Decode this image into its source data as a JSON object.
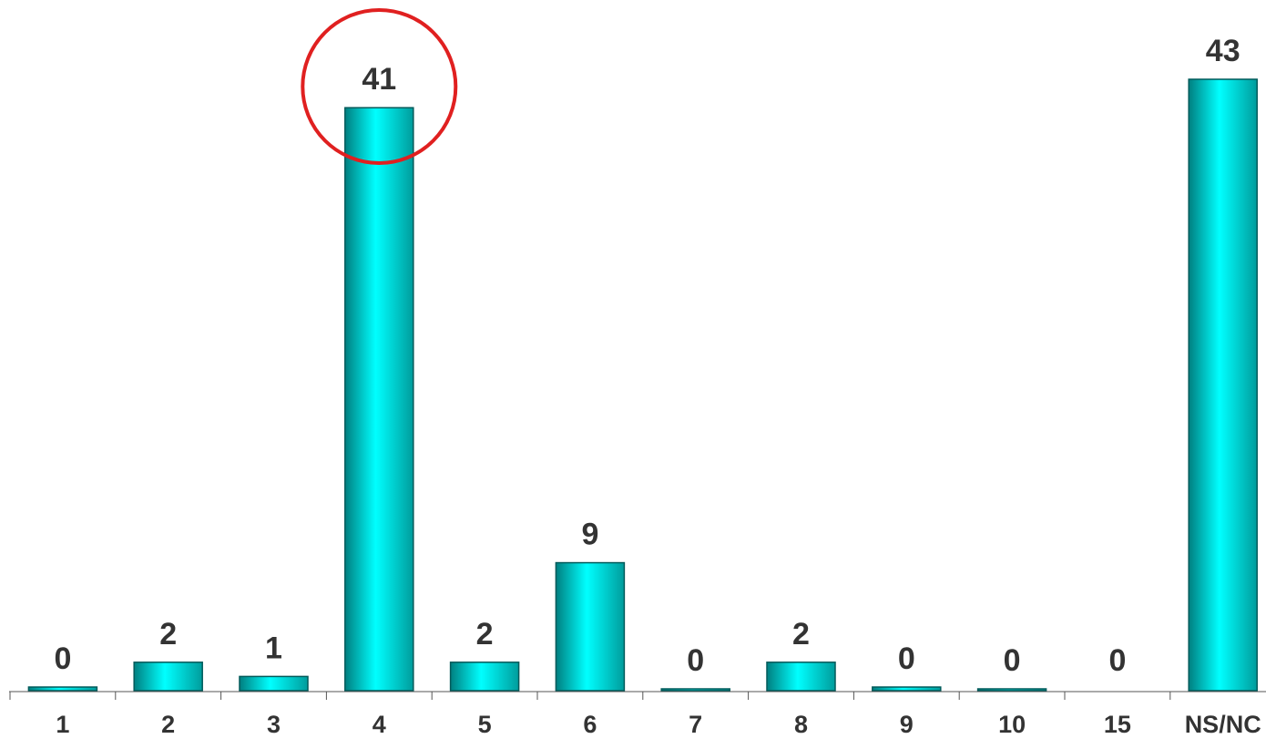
{
  "chart_data": {
    "type": "bar",
    "categories": [
      "1",
      "2",
      "3",
      "4",
      "5",
      "6",
      "7",
      "8",
      "9",
      "10",
      "15",
      "NS/NC"
    ],
    "values": [
      0,
      2,
      1,
      41,
      2,
      9,
      0,
      2,
      0,
      0,
      0,
      43
    ],
    "title": "",
    "xlabel": "",
    "ylabel": "",
    "ylim": [
      0,
      43
    ],
    "grid": false,
    "legend": "none",
    "highlighted_category": "4",
    "colors": {
      "bar_fill": "#00e0e0",
      "bar_edge": "#005a5a",
      "highlight_circle": "#e02020",
      "text": "#333333",
      "axis": "#555555"
    }
  }
}
